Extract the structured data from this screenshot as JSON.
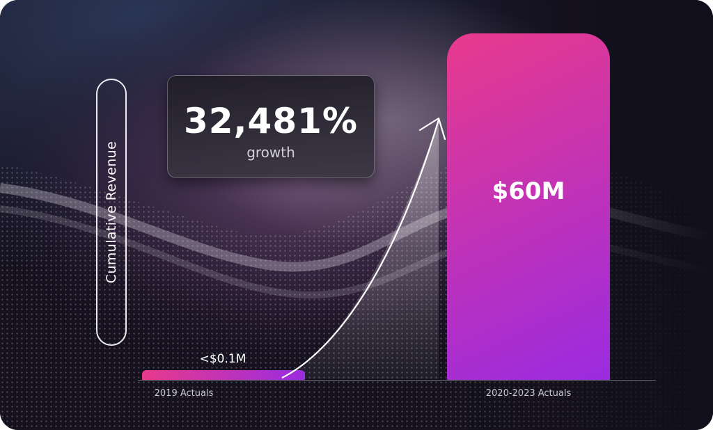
{
  "chart_data": {
    "type": "bar",
    "categories": [
      "2019 Actuals",
      "2020-2023 Actuals"
    ],
    "values": [
      0.1,
      60
    ],
    "value_labels": [
      "<$0.1M",
      "$60M"
    ],
    "ylabel": "Cumulative Revenue",
    "ylim": [
      0,
      60
    ],
    "grid": false,
    "annotation": {
      "value": "32,481%",
      "label": "growth"
    },
    "colors": {
      "gradient_start": "#e83a8c",
      "gradient_end": "#9a2be0",
      "background": "#120f1c"
    }
  }
}
